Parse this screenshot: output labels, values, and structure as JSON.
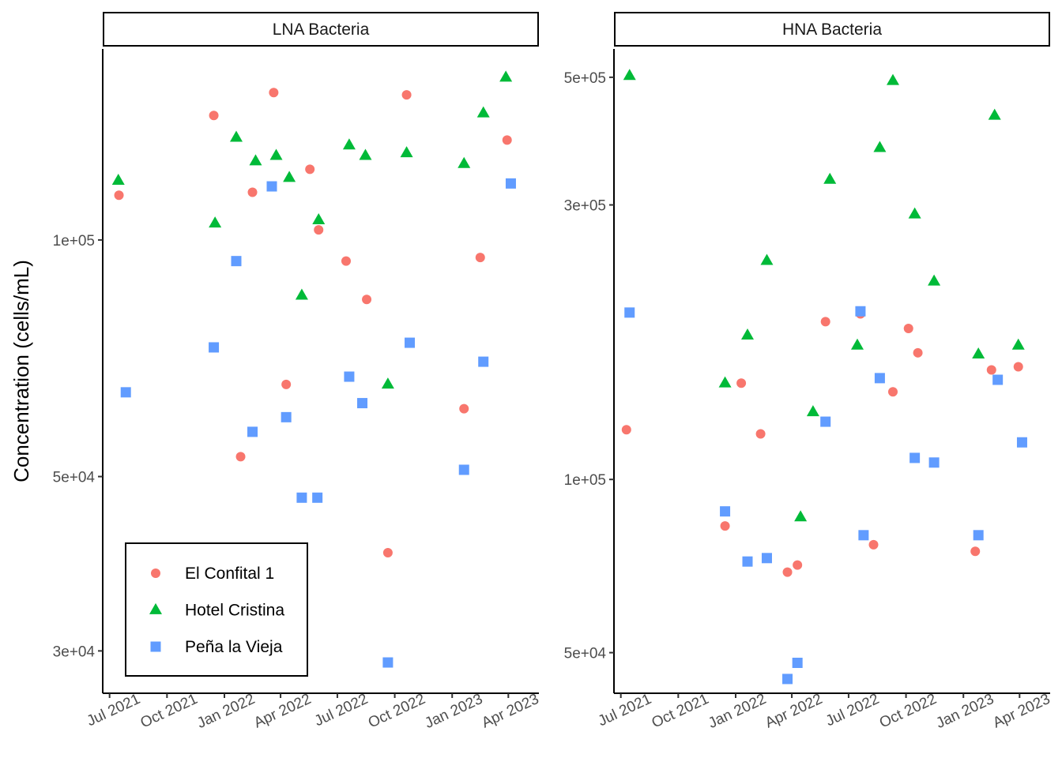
{
  "chart_data": {
    "type": "scatter",
    "ylabel": "Concentration (cells/mL)",
    "y_scale": "log",
    "x_tick_labels": [
      "Jul 2021",
      "Oct 2021",
      "Jan 2022",
      "Apr 2022",
      "Jul 2022",
      "Oct 2022",
      "Jan 2023",
      "Apr 2023"
    ],
    "x_ticks": [
      "2021-07-01",
      "2021-10-01",
      "2022-01-01",
      "2022-04-01",
      "2022-07-01",
      "2022-10-01",
      "2023-01-01",
      "2023-04-01"
    ],
    "xlim": [
      "2021-06-20",
      "2023-05-20"
    ],
    "legend": {
      "placement": "bottom-left inside first panel",
      "entries": [
        {
          "name": "El Confital 1",
          "shape": "circle",
          "color": "#F8766D"
        },
        {
          "name": "Hotel Cristina",
          "shape": "triangle",
          "color": "#00BA38"
        },
        {
          "name": "Peña la Vieja",
          "shape": "square",
          "color": "#619CFF"
        }
      ]
    },
    "panels": [
      {
        "title": "LNA Bacteria",
        "ylim": [
          26500,
          175000
        ],
        "y_tick_labels": [
          "3e+04",
          "5e+04",
          "1e+05"
        ],
        "y_ticks": [
          30000,
          50000,
          100000
        ],
        "series": [
          {
            "name": "El Confital 1",
            "points": [
              [
                "2021-07-16",
                114000
              ],
              [
                "2021-12-15",
                144000
              ],
              [
                "2022-01-27",
                53000
              ],
              [
                "2022-02-15",
                115000
              ],
              [
                "2022-03-21",
                154000
              ],
              [
                "2022-04-10",
                65500
              ],
              [
                "2022-05-18",
                123000
              ],
              [
                "2022-06-01",
                103000
              ],
              [
                "2022-07-15",
                94000
              ],
              [
                "2022-08-17",
                84000
              ],
              [
                "2022-09-20",
                40000
              ],
              [
                "2022-10-20",
                153000
              ],
              [
                "2023-01-20",
                61000
              ],
              [
                "2023-02-15",
                95000
              ],
              [
                "2023-03-30",
                134000
              ]
            ]
          },
          {
            "name": "Hotel Cristina",
            "points": [
              [
                "2021-07-15",
                119000
              ],
              [
                "2021-12-17",
                105000
              ],
              [
                "2022-01-20",
                135000
              ],
              [
                "2022-02-20",
                126000
              ],
              [
                "2022-03-25",
                128000
              ],
              [
                "2022-04-15",
                120000
              ],
              [
                "2022-05-05",
                85000
              ],
              [
                "2022-06-01",
                106000
              ],
              [
                "2022-07-20",
                132000
              ],
              [
                "2022-08-15",
                128000
              ],
              [
                "2022-09-20",
                65500
              ],
              [
                "2022-10-20",
                129000
              ],
              [
                "2023-01-20",
                125000
              ],
              [
                "2023-02-20",
                145000
              ],
              [
                "2023-03-28",
                161000
              ]
            ]
          },
          {
            "name": "Peña la Vieja",
            "points": [
              [
                "2021-07-27",
                64000
              ],
              [
                "2021-12-15",
                73000
              ],
              [
                "2022-01-20",
                94000
              ],
              [
                "2022-02-15",
                57000
              ],
              [
                "2022-03-18",
                117000
              ],
              [
                "2022-04-10",
                59500
              ],
              [
                "2022-05-05",
                47000
              ],
              [
                "2022-05-30",
                47000
              ],
              [
                "2022-07-20",
                67000
              ],
              [
                "2022-08-10",
                62000
              ],
              [
                "2022-10-25",
                74000
              ],
              [
                "2023-01-20",
                51000
              ],
              [
                "2023-02-20",
                70000
              ],
              [
                "2023-04-05",
                118000
              ],
              [
                "2022-09-20",
                29000
              ]
            ]
          }
        ]
      },
      {
        "title": "HNA Bacteria",
        "ylim": [
          42500,
          560000
        ],
        "y_tick_labels": [
          "5e+04",
          "1e+05",
          "3e+05",
          "5e+05"
        ],
        "y_ticks": [
          50000,
          100000,
          300000,
          500000
        ],
        "series": [
          {
            "name": "El Confital 1",
            "points": [
              [
                "2021-07-10",
                122000
              ],
              [
                "2021-12-15",
                83000
              ],
              [
                "2022-01-10",
                147000
              ],
              [
                "2022-02-10",
                120000
              ],
              [
                "2022-03-25",
                69000
              ],
              [
                "2022-04-10",
                71000
              ],
              [
                "2022-05-25",
                188000
              ],
              [
                "2022-07-20",
                194000
              ],
              [
                "2022-08-10",
                77000
              ],
              [
                "2022-09-10",
                142000
              ],
              [
                "2022-10-05",
                183000
              ],
              [
                "2022-10-20",
                166000
              ],
              [
                "2023-01-20",
                75000
              ],
              [
                "2023-02-15",
                155000
              ],
              [
                "2023-03-30",
                157000
              ]
            ]
          },
          {
            "name": "Hotel Cristina",
            "points": [
              [
                "2021-07-15",
                503000
              ],
              [
                "2021-12-15",
                147000
              ],
              [
                "2022-01-20",
                178000
              ],
              [
                "2022-02-20",
                240000
              ],
              [
                "2022-04-15",
                86000
              ],
              [
                "2022-05-05",
                131000
              ],
              [
                "2022-06-01",
                332000
              ],
              [
                "2022-07-15",
                171000
              ],
              [
                "2022-08-20",
                377000
              ],
              [
                "2022-09-10",
                493000
              ],
              [
                "2022-10-15",
                289000
              ],
              [
                "2022-11-15",
                221000
              ],
              [
                "2023-01-25",
                165000
              ],
              [
                "2023-02-20",
                429000
              ],
              [
                "2023-03-30",
                171000
              ]
            ]
          },
          {
            "name": "Peña la Vieja",
            "points": [
              [
                "2021-07-15",
                195000
              ],
              [
                "2021-12-15",
                88000
              ],
              [
                "2022-01-20",
                72000
              ],
              [
                "2022-02-20",
                73000
              ],
              [
                "2022-03-25",
                45000
              ],
              [
                "2022-04-10",
                48000
              ],
              [
                "2022-05-25",
                126000
              ],
              [
                "2022-07-20",
                196000
              ],
              [
                "2022-08-20",
                150000
              ],
              [
                "2022-10-15",
                109000
              ],
              [
                "2022-11-15",
                107000
              ],
              [
                "2023-01-25",
                80000
              ],
              [
                "2023-02-25",
                149000
              ],
              [
                "2023-04-05",
                116000
              ],
              [
                "2022-07-25",
                80000
              ]
            ]
          }
        ]
      }
    ]
  }
}
